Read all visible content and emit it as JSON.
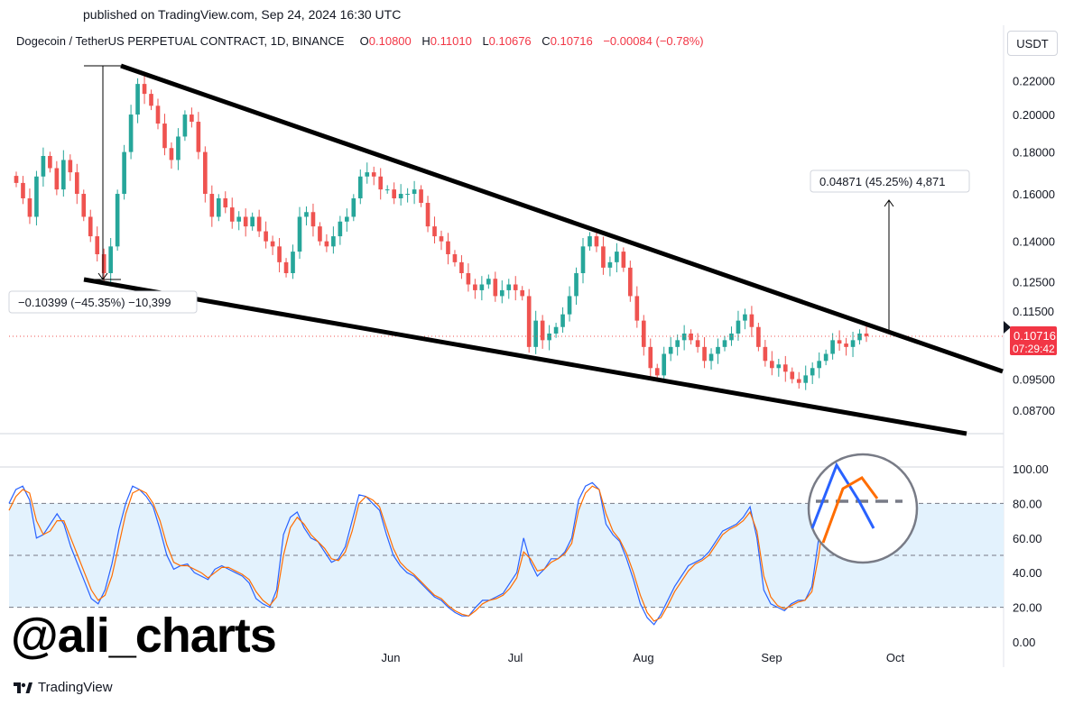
{
  "header": {
    "published": "published on TradingView.com, Sep 24, 2024 16:30 UTC"
  },
  "legend": {
    "symbol": "Dogecoin / TetherUS PERPETUAL CONTRACT, 1D, BINANCE",
    "o_label": "O",
    "o_value": "0.10800",
    "h_label": "H",
    "h_value": "0.11010",
    "l_label": "L",
    "l_value": "0.10676",
    "c_label": "C",
    "c_value": "0.10716",
    "change": "−0.00084 (−0.78%)"
  },
  "unit_button": "USDT",
  "watermark": "@ali_charts",
  "brand": "TradingView",
  "colors": {
    "up": "#26a69a",
    "down": "#ef5350",
    "trend": "#000000",
    "rsi_k": "#2962ff",
    "rsi_d": "#ff6d00",
    "band": "#e3f2fd"
  },
  "chart_data": [
    {
      "type": "candlestick",
      "title": "Dogecoin / TetherUS PERPETUAL CONTRACT, 1D, BINANCE",
      "x_ticks": [
        "Jun",
        "Jul",
        "Aug",
        "Sep",
        "Oct"
      ],
      "y_scale": "log",
      "y_ticks": [
        "0.22000",
        "0.20000",
        "0.18000",
        "0.16000",
        "0.14000",
        "0.12500",
        "0.11500",
        "0.09500",
        "0.08700"
      ],
      "y_tick_values": [
        0.22,
        0.2,
        0.18,
        0.16,
        0.14,
        0.125,
        0.115,
        0.095,
        0.087
      ],
      "last_price": "0.10716",
      "countdown": "07:29:42",
      "close_approx": [
        0.165,
        0.158,
        0.15,
        0.168,
        0.178,
        0.172,
        0.162,
        0.176,
        0.17,
        0.16,
        0.15,
        0.142,
        0.135,
        0.128,
        0.138,
        0.16,
        0.18,
        0.2,
        0.218,
        0.212,
        0.205,
        0.195,
        0.182,
        0.176,
        0.188,
        0.2,
        0.196,
        0.18,
        0.16,
        0.15,
        0.158,
        0.154,
        0.148,
        0.15,
        0.146,
        0.15,
        0.144,
        0.14,
        0.138,
        0.132,
        0.128,
        0.136,
        0.15,
        0.152,
        0.146,
        0.14,
        0.138,
        0.142,
        0.148,
        0.15,
        0.158,
        0.168,
        0.17,
        0.168,
        0.162,
        0.162,
        0.158,
        0.16,
        0.16,
        0.162,
        0.156,
        0.146,
        0.142,
        0.14,
        0.135,
        0.132,
        0.128,
        0.124,
        0.122,
        0.124,
        0.126,
        0.12,
        0.122,
        0.124,
        0.122,
        0.12,
        0.104,
        0.112,
        0.106,
        0.108,
        0.11,
        0.114,
        0.12,
        0.128,
        0.138,
        0.142,
        0.138,
        0.13,
        0.132,
        0.136,
        0.13,
        0.12,
        0.112,
        0.104,
        0.098,
        0.096,
        0.102,
        0.104,
        0.106,
        0.108,
        0.106,
        0.104,
        0.1,
        0.102,
        0.104,
        0.106,
        0.108,
        0.112,
        0.114,
        0.11,
        0.104,
        0.1,
        0.098,
        0.099,
        0.097,
        0.095,
        0.094,
        0.096,
        0.098,
        0.1,
        0.102,
        0.106,
        0.105,
        0.104,
        0.106,
        0.108,
        0.1072
      ],
      "annotations": {
        "drawdown": "−0.10399 (−45.35%) −10,399",
        "target": "0.04871 (45.25%) 4,871"
      }
    },
    {
      "type": "line",
      "title": "",
      "y_ticks": [
        "100.00",
        "80.00",
        "60.00",
        "40.00",
        "20.00",
        "0.00"
      ],
      "y_tick_values": [
        100,
        80,
        60,
        40,
        20,
        0
      ],
      "ylim": [
        0,
        100
      ],
      "band": [
        20,
        80
      ],
      "series": [
        {
          "values": [
            80,
            88,
            90,
            82,
            60,
            62,
            68,
            74,
            68,
            55,
            45,
            35,
            25,
            22,
            30,
            45,
            65,
            80,
            90,
            88,
            84,
            78,
            65,
            50,
            42,
            44,
            45,
            40,
            38,
            36,
            42,
            44,
            42,
            40,
            38,
            34,
            25,
            22,
            20,
            30,
            62,
            72,
            75,
            66,
            60,
            58,
            52,
            46,
            48,
            55,
            70,
            85,
            84,
            80,
            76,
            62,
            50,
            44,
            40,
            38,
            34,
            30,
            26,
            24,
            20,
            17,
            15,
            15,
            20,
            24,
            24,
            26,
            28,
            34,
            40,
            60,
            46,
            38,
            42,
            48,
            48,
            52,
            60,
            82,
            90,
            92,
            88,
            68,
            62,
            58,
            48,
            36,
            22,
            14,
            10,
            16,
            24,
            32,
            38,
            44,
            46,
            48,
            52,
            58,
            64,
            66,
            68,
            72,
            78,
            60,
            30,
            22,
            20,
            18,
            22,
            24,
            24,
            32,
            60,
            90,
            98,
            92,
            84,
            76,
            80,
            84,
            76
          ]
        },
        {
          "values": [
            76,
            84,
            88,
            86,
            70,
            62,
            64,
            70,
            70,
            60,
            50,
            40,
            30,
            24,
            27,
            38,
            56,
            74,
            86,
            88,
            86,
            80,
            70,
            56,
            46,
            44,
            44,
            42,
            40,
            37,
            40,
            43,
            43,
            41,
            39,
            36,
            29,
            24,
            21,
            26,
            50,
            66,
            72,
            68,
            62,
            58,
            54,
            48,
            47,
            52,
            64,
            80,
            84,
            82,
            78,
            66,
            54,
            46,
            42,
            39,
            35,
            31,
            27,
            25,
            21,
            18,
            16,
            15,
            18,
            22,
            24,
            25,
            27,
            31,
            37,
            52,
            48,
            41,
            42,
            46,
            48,
            51,
            57,
            76,
            86,
            90,
            88,
            74,
            64,
            59,
            51,
            40,
            27,
            17,
            12,
            14,
            21,
            29,
            35,
            41,
            45,
            47,
            50,
            56,
            62,
            65,
            67,
            70,
            75,
            64,
            38,
            26,
            21,
            19,
            21,
            23,
            24,
            29,
            50,
            80,
            92,
            93,
            88,
            80,
            80,
            82,
            78
          ]
        }
      ]
    }
  ]
}
